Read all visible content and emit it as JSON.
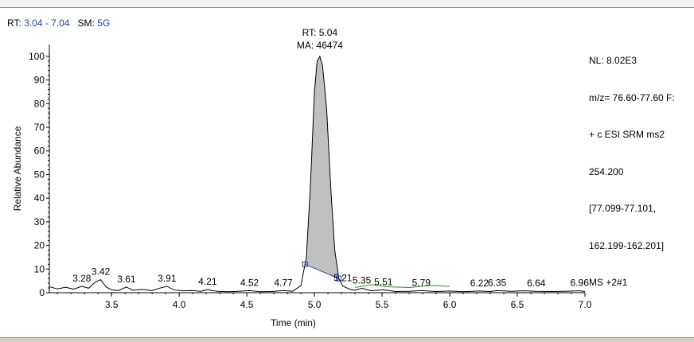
{
  "header": {
    "rt_label": "RT:",
    "rt_range": "3.04 - 7.04",
    "sm_label": "SM:",
    "sm_value": "5G"
  },
  "info": {
    "lines": [
      "NL: 8.02E3",
      "m/z= 76.60-77.60 F:",
      "+ c ESI SRM ms2",
      "254.200",
      "[77.099-77.101,",
      "162.199-162.201]",
      "MS +2#1"
    ]
  },
  "chart_data": {
    "type": "line",
    "title": "",
    "xlabel": "Time (min)",
    "ylabel": "Relative Abundance",
    "xlim": [
      3.04,
      7.0
    ],
    "ylim": [
      0,
      105
    ],
    "x_ticks": [
      "3.5",
      "4.0",
      "4.5",
      "5.0",
      "5.5",
      "6.0",
      "6.5",
      "7.0"
    ],
    "x_tick_values": [
      3.5,
      4.0,
      4.5,
      5.0,
      5.5,
      6.0,
      6.5,
      7.0
    ],
    "y_ticks": [
      "0",
      "10",
      "20",
      "30",
      "40",
      "50",
      "60",
      "70",
      "80",
      "90",
      "100"
    ],
    "y_tick_values": [
      0,
      10,
      20,
      30,
      40,
      50,
      60,
      70,
      80,
      90,
      100
    ],
    "grid": false,
    "colors": {
      "trace": "#000000",
      "peak_fill": "#c0c0c0",
      "baseline": "#1f3fa8",
      "noise_green": "#2e8b2e"
    },
    "series": [
      {
        "x": [
          3.04,
          3.1,
          3.16,
          3.22,
          3.28,
          3.33,
          3.38,
          3.42,
          3.46,
          3.5,
          3.55,
          3.61,
          3.66,
          3.72,
          3.8,
          3.86,
          3.91,
          3.96,
          4.02,
          4.1,
          4.16,
          4.21,
          4.28,
          4.36,
          4.44,
          4.52,
          4.6,
          4.68,
          4.77,
          4.84,
          4.9,
          4.94,
          4.97,
          5.0,
          5.02,
          5.04,
          5.06,
          5.09,
          5.12,
          5.15,
          5.18,
          5.21,
          5.26,
          5.3,
          5.35,
          5.42,
          5.51,
          5.6,
          5.7,
          5.79,
          5.9,
          6.0,
          6.1,
          6.22,
          6.3,
          6.35,
          6.45,
          6.55,
          6.64,
          6.75,
          6.85,
          6.96,
          7.0
        ],
        "y": [
          2.5,
          1.6,
          2.3,
          1.5,
          2.7,
          1.9,
          4.5,
          5.5,
          2.4,
          1.2,
          0.9,
          2.4,
          1.0,
          1.4,
          0.9,
          2.0,
          2.7,
          1.2,
          0.8,
          0.9,
          0.6,
          1.3,
          0.6,
          0.4,
          0.6,
          0.9,
          0.4,
          0.5,
          0.9,
          0.6,
          3.0,
          15.0,
          45.0,
          85.0,
          98.0,
          100.0,
          96.0,
          78.0,
          45.0,
          18.0,
          6.0,
          2.8,
          1.5,
          1.0,
          1.9,
          0.8,
          1.2,
          0.5,
          0.6,
          0.9,
          0.5,
          0.7,
          0.4,
          0.7,
          0.5,
          0.9,
          0.6,
          0.8,
          0.6,
          0.5,
          0.6,
          0.8,
          0.5
        ]
      }
    ],
    "integrated_peak": {
      "start": 4.93,
      "end": 5.18
    },
    "peak_labels": [
      {
        "x": 3.28,
        "text": "3.28"
      },
      {
        "x": 3.42,
        "text": "3.42"
      },
      {
        "x": 3.61,
        "text": "3.61"
      },
      {
        "x": 3.91,
        "text": "3.91"
      },
      {
        "x": 4.21,
        "text": "4.21"
      },
      {
        "x": 4.52,
        "text": "4.52"
      },
      {
        "x": 4.77,
        "text": "4.77"
      },
      {
        "x": 5.21,
        "text": "5.21"
      },
      {
        "x": 5.35,
        "text": "5.35"
      },
      {
        "x": 5.51,
        "text": "5.51"
      },
      {
        "x": 5.79,
        "text": "5.79"
      },
      {
        "x": 6.22,
        "text": "6.22"
      },
      {
        "x": 6.35,
        "text": "6.35"
      },
      {
        "x": 6.64,
        "text": "6.64"
      },
      {
        "x": 6.96,
        "text": "6.96"
      }
    ],
    "main_peak_annotation": [
      "RT: 5.04",
      "MA: 46474"
    ]
  }
}
